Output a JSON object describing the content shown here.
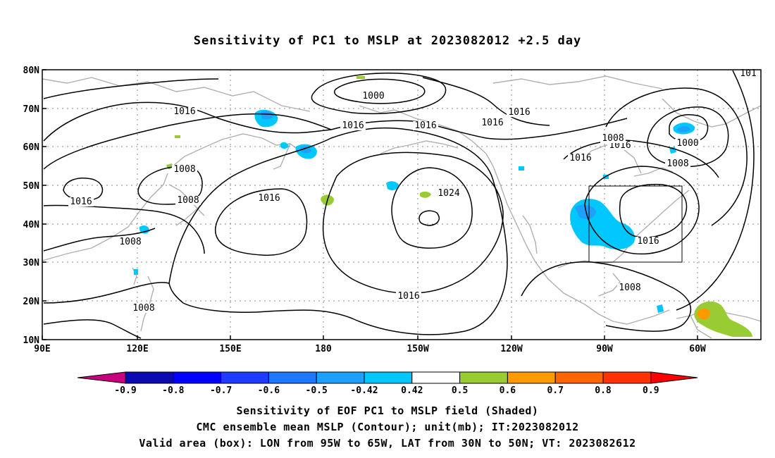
{
  "title": "Sensitivity of PC1 to MSLP at 2023082012 +2.5 day",
  "map": {
    "lon_labels": [
      "90E",
      "120E",
      "150E",
      "180",
      "150W",
      "120W",
      "90W",
      "60W"
    ],
    "lat_labels": [
      "80N",
      "70N",
      "60N",
      "50N",
      "40N",
      "30N",
      "20N",
      "10N"
    ],
    "contour_labels": [
      "1000",
      "1016",
      "1016",
      "1016",
      "1016",
      "1016",
      "1016",
      "1008",
      "1016",
      "1008",
      "1016",
      "1008",
      "1024",
      "1016",
      "1008",
      "1008",
      "1016",
      "1000",
      "1008",
      "1016",
      "1008",
      "101"
    ],
    "valid_box": "LON from 95W to 65W, LAT from 30N to 50N"
  },
  "colorbar": {
    "labels": [
      "-0.9",
      "-0.8",
      "-0.7",
      "-0.6",
      "-0.5",
      "-0.42",
      "0.42",
      "0.5",
      "0.6",
      "0.7",
      "0.8",
      "0.9"
    ],
    "colors": [
      "#c8007e",
      "#0a0ab0",
      "#0000ff",
      "#1e3cff",
      "#1e78ff",
      "#1ea0ff",
      "#00c8ff",
      "#ffffff",
      "#99cc33",
      "#ff9900",
      "#ff6600",
      "#ff3300",
      "#ff0000",
      "#ff99cc"
    ]
  },
  "captions": {
    "line1": "Sensitivity of EOF PC1 to MSLP field (Shaded)",
    "line2": "CMC ensemble mean MSLP (Contour); unit(mb); IT:2023082012",
    "line3": "Valid area (box): LON from 95W to 65W, LAT from 30N to 50N; VT: 2023082612"
  }
}
